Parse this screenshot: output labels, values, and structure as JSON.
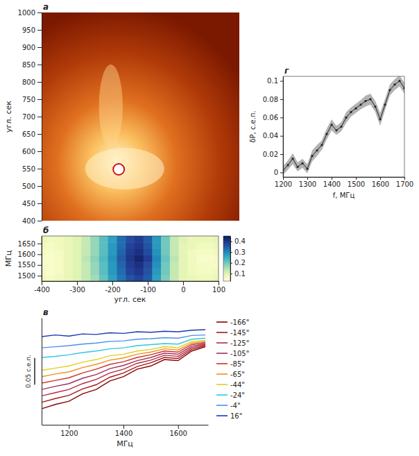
{
  "chart_data": [
    {
      "type": "image",
      "panel": "а",
      "ylabel": "угл. сек",
      "xlim": [
        -400,
        100
      ],
      "ylim": [
        400,
        1000
      ],
      "yticks": [
        400,
        450,
        500,
        550,
        600,
        650,
        700,
        750,
        800,
        850,
        900,
        950,
        1000
      ],
      "tick_labels": "y",
      "x": [
        -205
      ],
      "y": [
        548
      ]
    },
    {
      "type": "heatmap",
      "panel": "б",
      "xlabel": "угл. сек",
      "ylabel": "МГц",
      "xlim": [
        -400,
        100
      ],
      "ylim": [
        1475,
        1685
      ],
      "xticks": [
        -400,
        -300,
        -200,
        -100,
        0,
        100
      ],
      "yticks": [
        1500,
        1550,
        1600,
        1650
      ],
      "x": [
        -400,
        -375,
        -350,
        -325,
        -300,
        -275,
        -250,
        -225,
        -200,
        -175,
        -150,
        -125,
        -100,
        -75,
        -50,
        -25,
        0,
        25,
        50,
        75,
        100
      ],
      "y": [
        1490,
        1520,
        1550,
        1580,
        1610,
        1640,
        1670
      ],
      "cells": [
        [
          0.07,
          0.06,
          0.07,
          0.08,
          0.1,
          0.13,
          0.16,
          0.21,
          0.27,
          0.32,
          0.36,
          0.38,
          0.35,
          0.27,
          0.19,
          0.13,
          0.09,
          0.08,
          0.07,
          0.07,
          0.08
        ],
        [
          0.06,
          0.05,
          0.06,
          0.08,
          0.1,
          0.13,
          0.17,
          0.22,
          0.28,
          0.33,
          0.38,
          0.4,
          0.36,
          0.28,
          0.2,
          0.13,
          0.09,
          0.07,
          0.06,
          0.06,
          0.07
        ],
        [
          0.05,
          0.05,
          0.06,
          0.08,
          0.1,
          0.13,
          0.17,
          0.22,
          0.28,
          0.34,
          0.39,
          0.41,
          0.37,
          0.29,
          0.2,
          0.13,
          0.09,
          0.07,
          0.06,
          0.06,
          0.06
        ],
        [
          0.05,
          0.05,
          0.06,
          0.08,
          0.1,
          0.14,
          0.18,
          0.23,
          0.29,
          0.35,
          0.4,
          0.43,
          0.39,
          0.3,
          0.21,
          0.14,
          0.09,
          0.07,
          0.05,
          0.05,
          0.06
        ],
        [
          0.06,
          0.05,
          0.06,
          0.08,
          0.1,
          0.13,
          0.17,
          0.22,
          0.28,
          0.34,
          0.39,
          0.41,
          0.37,
          0.29,
          0.2,
          0.13,
          0.09,
          0.07,
          0.06,
          0.06,
          0.07
        ],
        [
          0.07,
          0.06,
          0.07,
          0.08,
          0.1,
          0.13,
          0.17,
          0.22,
          0.28,
          0.33,
          0.38,
          0.4,
          0.36,
          0.28,
          0.2,
          0.13,
          0.09,
          0.08,
          0.07,
          0.07,
          0.08
        ],
        [
          0.08,
          0.07,
          0.07,
          0.08,
          0.1,
          0.13,
          0.17,
          0.22,
          0.27,
          0.33,
          0.37,
          0.39,
          0.35,
          0.28,
          0.2,
          0.13,
          0.1,
          0.08,
          0.08,
          0.08,
          0.09
        ]
      ],
      "colorbar": {
        "lim": [
          0.03,
          0.45
        ],
        "ticks": [
          0.1,
          0.2,
          0.3,
          0.4
        ]
      }
    },
    {
      "type": "line",
      "panel": "в",
      "xlabel": "МГц",
      "xlim": [
        1100,
        1710
      ],
      "ylim": [
        0,
        0.2
      ],
      "xticks": [
        1200,
        1400,
        1600
      ],
      "tick_labels": "x",
      "legend": "right",
      "scale_bar": {
        "value": 0.05,
        "label": "0.05 с.е.п."
      },
      "x": [
        1100,
        1150,
        1200,
        1250,
        1300,
        1350,
        1400,
        1450,
        1500,
        1550,
        1600,
        1650,
        1700
      ],
      "series": [
        {
          "name": "-166\"",
          "color": "#8b0000",
          "values": [
            0.03,
            0.038,
            0.044,
            0.058,
            0.066,
            0.082,
            0.09,
            0.104,
            0.11,
            0.122,
            0.12,
            0.138,
            0.146
          ]
        },
        {
          "name": "-145\"",
          "color": "#a01818",
          "values": [
            0.042,
            0.049,
            0.055,
            0.067,
            0.075,
            0.089,
            0.097,
            0.109,
            0.116,
            0.126,
            0.124,
            0.141,
            0.148
          ]
        },
        {
          "name": "-125\"",
          "color": "#b8283a",
          "values": [
            0.054,
            0.06,
            0.066,
            0.077,
            0.085,
            0.097,
            0.104,
            0.115,
            0.121,
            0.13,
            0.128,
            0.144,
            0.15
          ]
        },
        {
          "name": "-105\"",
          "color": "#9a3060",
          "values": [
            0.066,
            0.072,
            0.077,
            0.087,
            0.094,
            0.105,
            0.111,
            0.12,
            0.126,
            0.134,
            0.132,
            0.147,
            0.152
          ]
        },
        {
          "name": "-85\"",
          "color": "#d03020",
          "values": [
            0.078,
            0.083,
            0.088,
            0.097,
            0.104,
            0.113,
            0.118,
            0.126,
            0.131,
            0.138,
            0.136,
            0.15,
            0.154
          ]
        },
        {
          "name": "-65\"",
          "color": "#f09020",
          "values": [
            0.09,
            0.095,
            0.099,
            0.107,
            0.113,
            0.121,
            0.125,
            0.132,
            0.136,
            0.142,
            0.14,
            0.153,
            0.156
          ]
        },
        {
          "name": "-44\"",
          "color": "#e0d020",
          "values": [
            0.102,
            0.106,
            0.11,
            0.117,
            0.122,
            0.129,
            0.132,
            0.138,
            0.141,
            0.146,
            0.144,
            0.156,
            0.158
          ]
        },
        {
          "name": "-24\"",
          "color": "#30c8e0",
          "values": [
            0.126,
            0.128,
            0.131,
            0.135,
            0.138,
            0.142,
            0.144,
            0.148,
            0.15,
            0.152,
            0.151,
            0.16,
            0.162
          ]
        },
        {
          "name": "-4\"",
          "color": "#4a90e8",
          "values": [
            0.144,
            0.146,
            0.148,
            0.151,
            0.153,
            0.156,
            0.157,
            0.16,
            0.161,
            0.163,
            0.162,
            0.167,
            0.168
          ]
        },
        {
          "name": "16\"",
          "color": "#1a38b0",
          "values": [
            0.165,
            0.168,
            0.166,
            0.17,
            0.169,
            0.172,
            0.171,
            0.174,
            0.173,
            0.175,
            0.174,
            0.177,
            0.178
          ]
        }
      ]
    },
    {
      "type": "line",
      "panel": "г",
      "xlabel": "f, МГц",
      "ylabel": "δP, с.е.п.",
      "xlim": [
        1200,
        1700
      ],
      "ylim": [
        -0.005,
        0.105
      ],
      "xticks": [
        1200,
        1300,
        1400,
        1500,
        1600,
        1700
      ],
      "yticks": [
        0,
        0.02,
        0.04,
        0.06,
        0.08,
        0.1
      ],
      "color": "#222222",
      "marker": "dot",
      "x": [
        1200,
        1220,
        1240,
        1260,
        1280,
        1300,
        1320,
        1340,
        1360,
        1380,
        1400,
        1420,
        1440,
        1460,
        1480,
        1500,
        1520,
        1540,
        1560,
        1580,
        1600,
        1620,
        1640,
        1660,
        1680,
        1700
      ],
      "values": [
        0.002,
        0.008,
        0.015,
        0.006,
        0.01,
        0.004,
        0.018,
        0.024,
        0.03,
        0.042,
        0.052,
        0.046,
        0.05,
        0.06,
        0.066,
        0.07,
        0.074,
        0.078,
        0.08,
        0.072,
        0.058,
        0.074,
        0.09,
        0.096,
        0.1,
        0.092
      ],
      "errors": [
        0.005,
        0.005,
        0.006,
        0.005,
        0.005,
        0.005,
        0.006,
        0.006,
        0.005,
        0.006,
        0.006,
        0.005,
        0.005,
        0.006,
        0.005,
        0.005,
        0.005,
        0.006,
        0.006,
        0.006,
        0.007,
        0.006,
        0.006,
        0.006,
        0.006,
        0.006
      ]
    }
  ]
}
